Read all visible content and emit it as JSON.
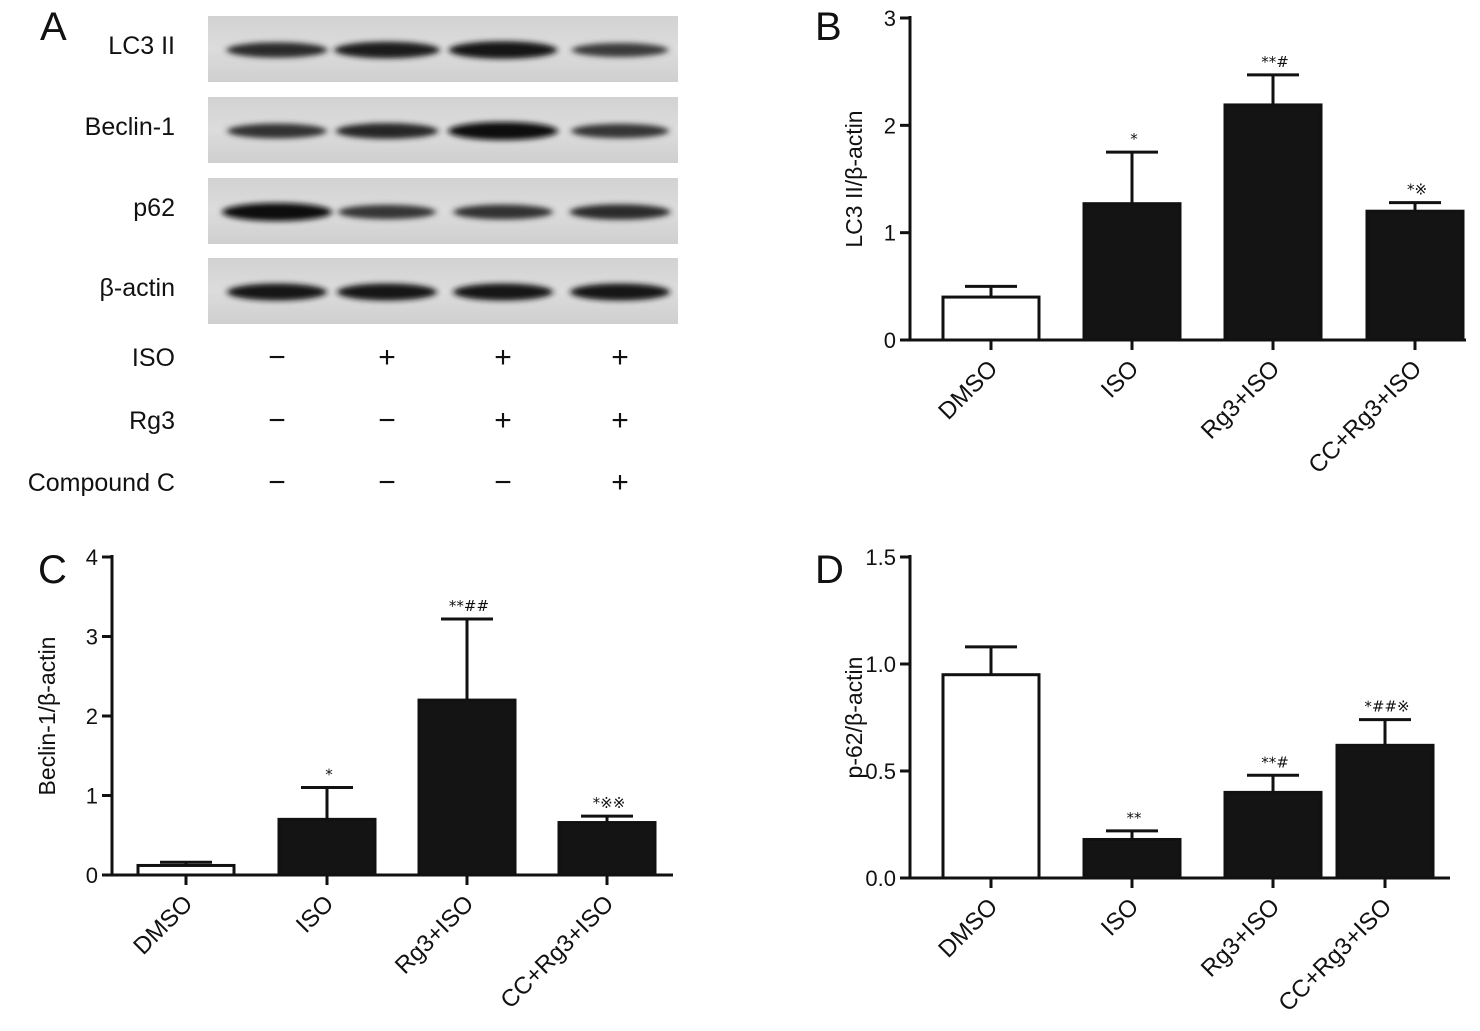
{
  "panel_a": {
    "label": "A",
    "lanes": 4,
    "proteins": [
      {
        "name": "LC3 II",
        "intensity": [
          0.7,
          0.85,
          0.95,
          0.55
        ]
      },
      {
        "name": "Beclin-1",
        "intensity": [
          0.65,
          0.75,
          1.0,
          0.6
        ]
      },
      {
        "name": "p62",
        "intensity": [
          1.0,
          0.6,
          0.65,
          0.7
        ]
      },
      {
        "name": "β-actin",
        "intensity": [
          0.9,
          0.9,
          0.9,
          0.9
        ]
      }
    ],
    "treatments": [
      {
        "name": "ISO",
        "signs": [
          "−",
          "+",
          "+",
          "+"
        ]
      },
      {
        "name": "Rg3",
        "signs": [
          "−",
          "−",
          "+",
          "+"
        ]
      },
      {
        "name": "Compound C",
        "signs": [
          "−",
          "−",
          "−",
          "+"
        ]
      }
    ]
  },
  "chart_data": [
    {
      "panel": "B",
      "type": "bar",
      "categories": [
        "DMSO",
        "ISO",
        "Rg3+ISO",
        "CC+Rg3+ISO"
      ],
      "values": [
        0.4,
        1.27,
        2.19,
        1.2
      ],
      "errors": [
        0.1,
        0.48,
        0.28,
        0.08
      ],
      "annotations": [
        "",
        "*",
        "**#",
        "*※"
      ],
      "bar_colors": [
        "#ffffff",
        "#141414",
        "#141414",
        "#141414"
      ],
      "ylabel": "LC3 II/β-actin",
      "ylim": [
        0,
        3
      ],
      "yticks": [
        "0",
        "1",
        "2",
        "3"
      ]
    },
    {
      "panel": "C",
      "type": "bar",
      "categories": [
        "DMSO",
        "ISO",
        "Rg3+ISO",
        "CC+Rg3+ISO"
      ],
      "values": [
        0.12,
        0.7,
        2.2,
        0.66
      ],
      "errors": [
        0.04,
        0.4,
        1.02,
        0.08
      ],
      "annotations": [
        "",
        "*",
        "**##",
        "*※※"
      ],
      "bar_colors": [
        "#ffffff",
        "#141414",
        "#141414",
        "#141414"
      ],
      "ylabel": "Beclin-1/β-actin",
      "ylim": [
        0,
        4
      ],
      "yticks": [
        "0",
        "1",
        "2",
        "3",
        "4"
      ]
    },
    {
      "panel": "D",
      "type": "bar",
      "categories": [
        "DMSO",
        "ISO",
        "Rg3+ISO",
        "CC+Rg3+ISO"
      ],
      "values": [
        0.95,
        0.18,
        0.4,
        0.62
      ],
      "errors": [
        0.13,
        0.04,
        0.08,
        0.12
      ],
      "annotations": [
        "",
        "**",
        "**#",
        "*##※"
      ],
      "bar_colors": [
        "#ffffff",
        "#141414",
        "#141414",
        "#141414"
      ],
      "ylabel": "p-62/β-actin",
      "ylim": [
        0,
        1.5
      ],
      "yticks": [
        "0.0",
        "0.5",
        "1.0",
        "1.5"
      ]
    }
  ]
}
